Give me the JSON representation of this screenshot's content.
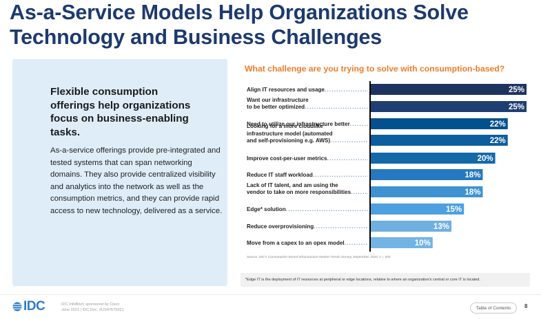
{
  "page": {
    "title": "As-a-Service Models Help Organizations Solve Technology and Business Challenges"
  },
  "panel": {
    "heading": "Flexible consumption offerings help organizations focus on business-enabling tasks.",
    "body": "As-a-service offerings provide pre-integrated and tested systems that can span networking domains. They also provide centralized visibility and analytics into the network as well as the consumption metrics, and they can provide rapid access to new technology, delivered as a service."
  },
  "chart_data": {
    "type": "bar",
    "orientation": "horizontal",
    "title": "What challenge are you trying to solve with consumption-based?",
    "xlabel": "",
    "ylabel": "",
    "xlim": [
      0,
      25
    ],
    "grid": false,
    "value_suffix": "%",
    "categories": [
      [
        "Align IT resources and usage"
      ],
      [
        "Want our infrastructure",
        "to be better optimized"
      ],
      [
        "Need to utilize our infrastructure better"
      ],
      [
        "Looking for a more cloudlike",
        "infrastructure model (automated",
        "and self-provisioning e.g. AWS)"
      ],
      [
        "Improve cost-per-user metrics"
      ],
      [
        "Reduce IT staff workload"
      ],
      [
        "Lack of IT talent, and am using the",
        "vendor to take on more responsibilities"
      ],
      [
        "Edge* solution"
      ],
      [
        "Reduce overprovisioning"
      ],
      [
        "Move from a capex to an opex model"
      ]
    ],
    "values": [
      25,
      25,
      22,
      22,
      20,
      18,
      18,
      15,
      13,
      10
    ],
    "data_labels": [
      "25%",
      "25%",
      "22%",
      "22%",
      "20%",
      "18%",
      "18%",
      "15%",
      "13%",
      "10%"
    ],
    "colors": [
      "#1d3461",
      "#1f3f73",
      "#02508e",
      "#0c5e9e",
      "#1469a8",
      "#2479c0",
      "#3f92d2",
      "#4ca0e0",
      "#6fb0e0",
      "#72b4e4"
    ],
    "source": "Source: IDC's Consumption-Based Infrastructure Market Trends Survey, September 2020, n = 600",
    "footnote": "*Edge IT is the deployment of IT resources at peripheral or edge locations, relative to where an organization's central or core IT is located."
  },
  "footer": {
    "logo_text": "IDC",
    "info_line1": "IDC InfoBrief, sponsored by Cisco",
    "info_line2": "June 2021 | IDC Doc. #US47675921",
    "toc_label": "Table of Contents",
    "page_number": "8"
  }
}
